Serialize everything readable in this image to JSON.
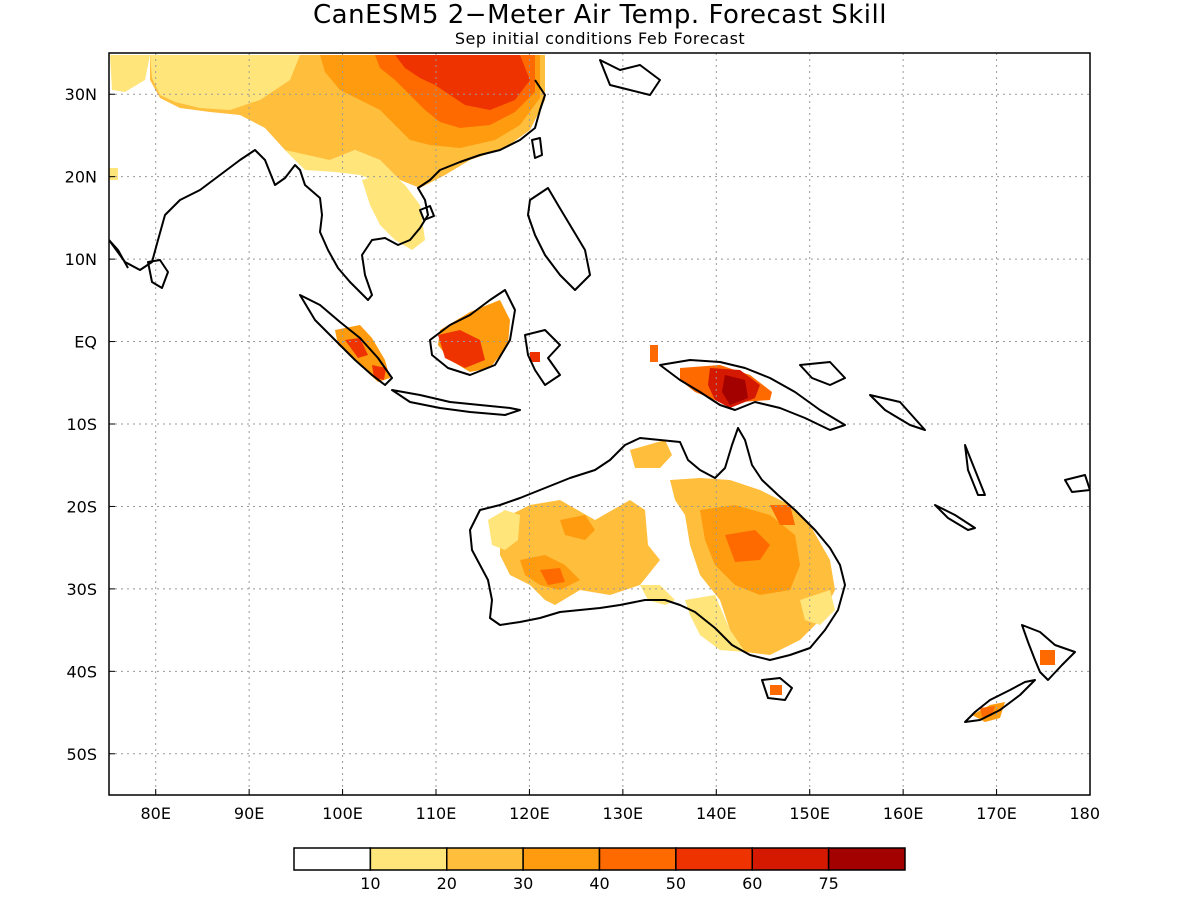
{
  "title": "CanESM5 2−Meter Air Temp. Forecast Skill",
  "subtitle": "Sep initial conditions  Feb Forecast",
  "map": {
    "lon_range": [
      75,
      180
    ],
    "lat_range": [
      -55,
      35
    ],
    "lat_ticks": [
      {
        "lat": 30,
        "label": "30N"
      },
      {
        "lat": 20,
        "label": "20N"
      },
      {
        "lat": 10,
        "label": "10N"
      },
      {
        "lat": 0,
        "label": "EQ"
      },
      {
        "lat": -10,
        "label": "10S"
      },
      {
        "lat": -20,
        "label": "20S"
      },
      {
        "lat": -30,
        "label": "30S"
      },
      {
        "lat": -40,
        "label": "40S"
      },
      {
        "lat": -50,
        "label": "50S"
      }
    ],
    "lon_ticks": [
      {
        "lon": 80,
        "label": "80E"
      },
      {
        "lon": 90,
        "label": "90E"
      },
      {
        "lon": 100,
        "label": "100E"
      },
      {
        "lon": 110,
        "label": "110E"
      },
      {
        "lon": 120,
        "label": "120E"
      },
      {
        "lon": 130,
        "label": "130E"
      },
      {
        "lon": 140,
        "label": "140E"
      },
      {
        "lon": 150,
        "label": "150E"
      },
      {
        "lon": 160,
        "label": "160E"
      },
      {
        "lon": 170,
        "label": "170E"
      },
      {
        "lon": 180,
        "label": "180"
      }
    ],
    "grid": true
  },
  "colorbar": {
    "colors": [
      "#ffffff",
      "#ffe57a",
      "#ffbe3c",
      "#ff9b0f",
      "#ff6a00",
      "#ee3300",
      "#d51800",
      "#a30000"
    ],
    "labels": [
      "10",
      "20",
      "30",
      "40",
      "50",
      "60",
      "75"
    ]
  }
}
